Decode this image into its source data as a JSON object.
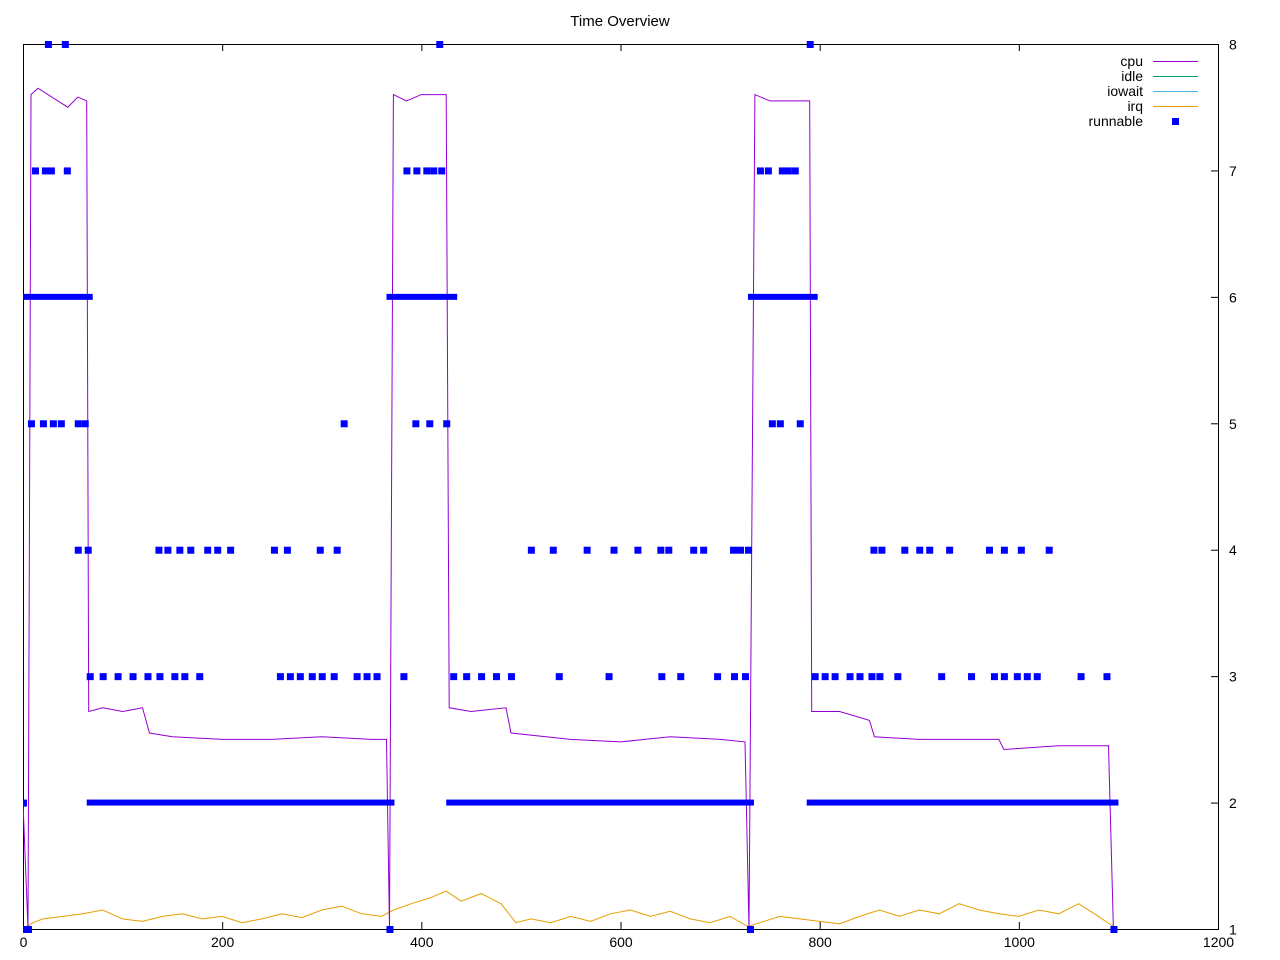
{
  "chart_data": {
    "type": "line",
    "title": "Time Overview",
    "xlabel": "",
    "ylabel": "",
    "xlim": [
      0,
      1200
    ],
    "ylim": [
      1,
      8
    ],
    "y_axis_side": "right",
    "grid": false,
    "legend_position": "top-right",
    "x_ticks": [
      "0",
      "200",
      "400",
      "600",
      "800",
      "1000",
      "1200"
    ],
    "y_ticks": [
      "1",
      "2",
      "3",
      "4",
      "5",
      "6",
      "7",
      "8"
    ],
    "colors": {
      "cpu": "#9400d3",
      "idle": "#009e73",
      "iowait": "#56b4e9",
      "irq": "#e69f00",
      "runnable": "#0000ff"
    },
    "series": [
      {
        "name": "cpu",
        "style": "line",
        "points": [
          [
            0,
            2.0
          ],
          [
            5,
            1.0
          ],
          [
            8,
            7.6
          ],
          [
            15,
            7.65
          ],
          [
            25,
            7.6
          ],
          [
            35,
            7.55
          ],
          [
            45,
            7.5
          ],
          [
            55,
            7.58
          ],
          [
            64,
            7.55
          ],
          [
            66,
            2.72
          ],
          [
            80,
            2.75
          ],
          [
            100,
            2.72
          ],
          [
            120,
            2.75
          ],
          [
            127,
            2.55
          ],
          [
            150,
            2.52
          ],
          [
            200,
            2.5
          ],
          [
            250,
            2.5
          ],
          [
            300,
            2.52
          ],
          [
            350,
            2.5
          ],
          [
            365,
            2.5
          ],
          [
            368,
            1.0
          ],
          [
            372,
            7.6
          ],
          [
            385,
            7.55
          ],
          [
            400,
            7.6
          ],
          [
            415,
            7.6
          ],
          [
            425,
            7.6
          ],
          [
            428,
            2.75
          ],
          [
            450,
            2.72
          ],
          [
            485,
            2.75
          ],
          [
            490,
            2.55
          ],
          [
            550,
            2.5
          ],
          [
            600,
            2.48
          ],
          [
            650,
            2.52
          ],
          [
            700,
            2.5
          ],
          [
            725,
            2.48
          ],
          [
            729,
            1.0
          ],
          [
            735,
            7.6
          ],
          [
            750,
            7.55
          ],
          [
            770,
            7.55
          ],
          [
            790,
            7.55
          ],
          [
            792,
            2.72
          ],
          [
            820,
            2.72
          ],
          [
            850,
            2.65
          ],
          [
            855,
            2.52
          ],
          [
            900,
            2.5
          ],
          [
            950,
            2.5
          ],
          [
            980,
            2.5
          ],
          [
            985,
            2.42
          ],
          [
            1040,
            2.45
          ],
          [
            1090,
            2.45
          ],
          [
            1095,
            1.0
          ]
        ]
      },
      {
        "name": "idle",
        "style": "line",
        "points": []
      },
      {
        "name": "iowait",
        "style": "line",
        "points": []
      },
      {
        "name": "irq",
        "style": "line",
        "points": [
          [
            0,
            1.0
          ],
          [
            10,
            1.05
          ],
          [
            20,
            1.08
          ],
          [
            40,
            1.1
          ],
          [
            60,
            1.12
          ],
          [
            80,
            1.15
          ],
          [
            100,
            1.08
          ],
          [
            120,
            1.06
          ],
          [
            140,
            1.1
          ],
          [
            160,
            1.12
          ],
          [
            180,
            1.08
          ],
          [
            200,
            1.1
          ],
          [
            220,
            1.05
          ],
          [
            240,
            1.08
          ],
          [
            260,
            1.12
          ],
          [
            280,
            1.09
          ],
          [
            300,
            1.15
          ],
          [
            320,
            1.18
          ],
          [
            340,
            1.12
          ],
          [
            360,
            1.1
          ],
          [
            372,
            1.15
          ],
          [
            390,
            1.2
          ],
          [
            410,
            1.25
          ],
          [
            425,
            1.3
          ],
          [
            440,
            1.22
          ],
          [
            460,
            1.28
          ],
          [
            480,
            1.2
          ],
          [
            495,
            1.05
          ],
          [
            510,
            1.08
          ],
          [
            530,
            1.05
          ],
          [
            550,
            1.1
          ],
          [
            570,
            1.06
          ],
          [
            590,
            1.12
          ],
          [
            610,
            1.15
          ],
          [
            630,
            1.1
          ],
          [
            650,
            1.14
          ],
          [
            670,
            1.08
          ],
          [
            690,
            1.05
          ],
          [
            710,
            1.1
          ],
          [
            728,
            1.02
          ],
          [
            740,
            1.05
          ],
          [
            760,
            1.1
          ],
          [
            780,
            1.08
          ],
          [
            800,
            1.06
          ],
          [
            820,
            1.04
          ],
          [
            840,
            1.1
          ],
          [
            860,
            1.15
          ],
          [
            880,
            1.1
          ],
          [
            900,
            1.15
          ],
          [
            920,
            1.12
          ],
          [
            940,
            1.2
          ],
          [
            960,
            1.15
          ],
          [
            980,
            1.12
          ],
          [
            1000,
            1.1
          ],
          [
            1020,
            1.15
          ],
          [
            1040,
            1.12
          ],
          [
            1060,
            1.2
          ],
          [
            1080,
            1.1
          ],
          [
            1095,
            1.02
          ]
        ]
      },
      {
        "name": "runnable",
        "style": "points",
        "points": [
          [
            0,
            2
          ],
          [
            2,
            1
          ],
          [
            5,
            1
          ],
          [
            25,
            8
          ],
          [
            42,
            8
          ],
          [
            12,
            7
          ],
          [
            22,
            7
          ],
          [
            28,
            7
          ],
          [
            44,
            7
          ],
          [
            8,
            5
          ],
          [
            20,
            5
          ],
          [
            30,
            5
          ],
          [
            38,
            5
          ],
          [
            55,
            5
          ],
          [
            62,
            5
          ],
          [
            55,
            4
          ],
          [
            65,
            4
          ],
          [
            136,
            4
          ],
          [
            145,
            4
          ],
          [
            157,
            4
          ],
          [
            168,
            4
          ],
          [
            185,
            4
          ],
          [
            195,
            4
          ],
          [
            208,
            4
          ],
          [
            252,
            4
          ],
          [
            265,
            4
          ],
          [
            298,
            4
          ],
          [
            315,
            4
          ],
          [
            322,
            5
          ],
          [
            67,
            3
          ],
          [
            80,
            3
          ],
          [
            95,
            3
          ],
          [
            110,
            3
          ],
          [
            125,
            3
          ],
          [
            137,
            3
          ],
          [
            152,
            3
          ],
          [
            162,
            3
          ],
          [
            177,
            3
          ],
          [
            258,
            3
          ],
          [
            268,
            3
          ],
          [
            278,
            3
          ],
          [
            290,
            3
          ],
          [
            300,
            3
          ],
          [
            312,
            3
          ],
          [
            335,
            3
          ],
          [
            345,
            3
          ],
          [
            355,
            3
          ],
          [
            382,
            3
          ],
          [
            368,
            1
          ],
          [
            418,
            8
          ],
          [
            385,
            7
          ],
          [
            395,
            7
          ],
          [
            405,
            7
          ],
          [
            412,
            7
          ],
          [
            420,
            7
          ],
          [
            394,
            5
          ],
          [
            408,
            5
          ],
          [
            425,
            5
          ],
          [
            432,
            3
          ],
          [
            445,
            3
          ],
          [
            460,
            3
          ],
          [
            475,
            3
          ],
          [
            490,
            3
          ],
          [
            510,
            4
          ],
          [
            532,
            4
          ],
          [
            566,
            4
          ],
          [
            593,
            4
          ],
          [
            617,
            4
          ],
          [
            640,
            4
          ],
          [
            648,
            4
          ],
          [
            673,
            4
          ],
          [
            683,
            4
          ],
          [
            713,
            4
          ],
          [
            720,
            4
          ],
          [
            728,
            4
          ],
          [
            538,
            3
          ],
          [
            588,
            3
          ],
          [
            641,
            3
          ],
          [
            660,
            3
          ],
          [
            697,
            3
          ],
          [
            714,
            3
          ],
          [
            725,
            3
          ],
          [
            730,
            1
          ],
          [
            790,
            8
          ],
          [
            740,
            7
          ],
          [
            748,
            7
          ],
          [
            762,
            7
          ],
          [
            768,
            7
          ],
          [
            775,
            7
          ],
          [
            752,
            5
          ],
          [
            760,
            5
          ],
          [
            780,
            5
          ],
          [
            795,
            3
          ],
          [
            805,
            3
          ],
          [
            815,
            3
          ],
          [
            830,
            3
          ],
          [
            840,
            3
          ],
          [
            852,
            3
          ],
          [
            860,
            3
          ],
          [
            878,
            3
          ],
          [
            854,
            4
          ],
          [
            862,
            4
          ],
          [
            885,
            4
          ],
          [
            900,
            4
          ],
          [
            910,
            4
          ],
          [
            930,
            4
          ],
          [
            970,
            4
          ],
          [
            985,
            4
          ],
          [
            1002,
            4
          ],
          [
            1030,
            4
          ],
          [
            922,
            3
          ],
          [
            952,
            3
          ],
          [
            975,
            3
          ],
          [
            985,
            3
          ],
          [
            998,
            3
          ],
          [
            1008,
            3
          ],
          [
            1018,
            3
          ],
          [
            1062,
            3
          ],
          [
            1088,
            3
          ],
          [
            1095,
            1
          ]
        ],
        "segments": [
          [
            2,
            67,
            6
          ],
          [
            368,
            433,
            6
          ],
          [
            731,
            795,
            6
          ],
          [
            67,
            370,
            2
          ],
          [
            428,
            731,
            2
          ],
          [
            790,
            1097,
            2
          ]
        ]
      }
    ]
  }
}
